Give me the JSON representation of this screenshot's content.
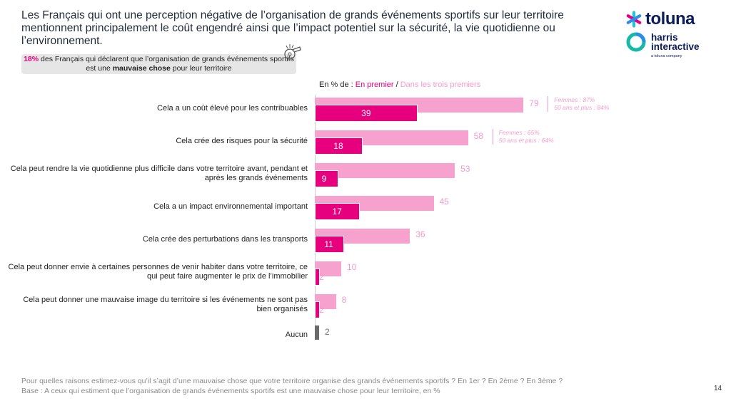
{
  "header": {
    "headline": "Les Français qui ont une perception négative de l’organisation de grands événements sportifs sur leur territoire mentionnent principalement le coût engendré ainsi que l’impact potentiel sur la sécurité, la vie quotidienne ou l’environnement.",
    "callout": {
      "pct": "18%",
      "text_a": " des Français qui déclarent que l’organisation de grands événements sportifs est une ",
      "bold": "mauvaise chose",
      "text_b": " pour leur territoire"
    }
  },
  "logos": {
    "toluna": "toluna",
    "harris_line1": "harris",
    "harris_line2": "interactive",
    "harris_tag": "a toluna company"
  },
  "legend": {
    "prefix": "En % de : ",
    "first": "En premier",
    "separator": " / ",
    "total": "Dans les trois premiers"
  },
  "colors": {
    "first": "#e6007e",
    "total": "#f7a1cf",
    "none": "#6b6b6b",
    "brand": "#0a1b5c"
  },
  "chart_data": {
    "type": "bar",
    "orientation": "horizontal",
    "xlim": [
      0,
      100
    ],
    "categories": [
      "Cela a un coût élevé pour les contribuables",
      "Cela crée des risques pour la sécurité",
      "Cela peut rendre la vie quotidienne plus difficile dans votre territoire avant, pendant et après les grands événements",
      "Cela a un impact environnemental important",
      "Cela crée des perturbations dans les transports",
      "Cela peut donner envie à certaines personnes de venir habiter dans votre territoire, ce qui peut faire augmenter le prix de l’immobilier",
      "Cela peut donner une mauvaise image du territoire si les événements ne sont pas bien organisés",
      "Aucun"
    ],
    "series": [
      {
        "name": "Dans les trois premiers",
        "values": [
          79,
          58,
          53,
          45,
          36,
          10,
          8,
          2
        ]
      },
      {
        "name": "En premier",
        "values": [
          39,
          18,
          9,
          17,
          11,
          2,
          2,
          null
        ]
      }
    ],
    "annotations": [
      {
        "category_index": 0,
        "lines": [
          "Femmes : 87%",
          "50 ans et plus : 84%"
        ]
      },
      {
        "category_index": 1,
        "lines": [
          "Femmes : 65%",
          "50 ans et plus : 64%"
        ]
      }
    ]
  },
  "footnote": {
    "question": "Pour quelles raisons estimez-vous qu’il s’agit d’une mauvaise chose que votre territoire organise des grands événements sportifs ? En 1er ? En 2ème ? En 3ème ?",
    "base": "Base : A ceux qui estiment que l’organisation de grands événements sportifs est une mauvaise chose pour leur territoire, en %"
  },
  "page_number": "14"
}
